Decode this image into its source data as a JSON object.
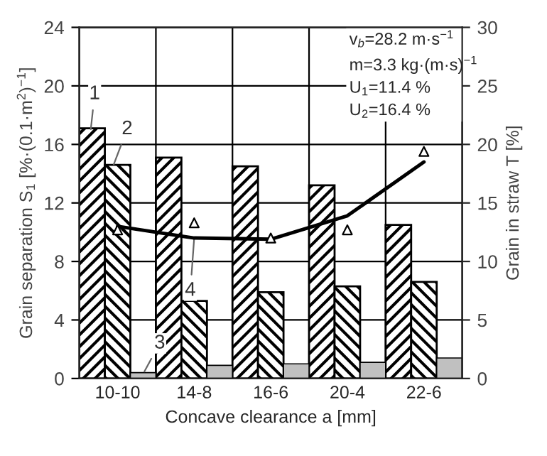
{
  "chart_data": {
    "type": "bar",
    "xlabel": "Concave clearance a [mm]",
    "ylabel": "Grain separation S$_{1}$ [%·(0.1·m$^{2}$)$^{−1}$]",
    "y2label": "Grain in straw T [%]",
    "categories": [
      "10-10",
      "14-8",
      "16-6",
      "20-4",
      "22-6"
    ],
    "series": [
      {
        "color": "#000000",
        "values": [
          17.1,
          15.1,
          14.5,
          13.2,
          10.5
        ]
      },
      {
        "color": "#000000",
        "values": [
          14.6,
          5.3,
          5.9,
          6.3,
          6.6
        ]
      },
      {
        "color": "#c0c0c0",
        "values": [
          0.4,
          0.9,
          1.0,
          1.1,
          1.4
        ]
      },
      {
        "type": "scatter",
        "axis": "y2",
        "marker": "triangle",
        "color": "#000000",
        "values": [
          12.7,
          13.3,
          12.0,
          12.7,
          19.4
        ]
      },
      {
        "type": "line",
        "axis": "y2",
        "color": "#000000",
        "values": [
          13.0,
          12.0,
          11.9,
          13.9,
          18.5
        ]
      }
    ],
    "ylim": [
      0,
      24
    ],
    "yticks": [
      0,
      4,
      8,
      12,
      16,
      20,
      24
    ],
    "y2lim": [
      0,
      30
    ],
    "y2ticks": [
      0,
      5,
      10,
      15,
      20,
      25,
      30
    ],
    "grid": true,
    "annotations": [
      "1",
      "2",
      "3",
      {
        "text": "4",
        "x": "14-8",
        "y": 9.6
      },
      "v$_{b}$=28.2 m·s$^{−1}$\nm=3.3 kg·(m·s)$^{−1}$\nU$_{1}$=11.4 %\nU$_{2}$=16.4 %"
    ]
  }
}
